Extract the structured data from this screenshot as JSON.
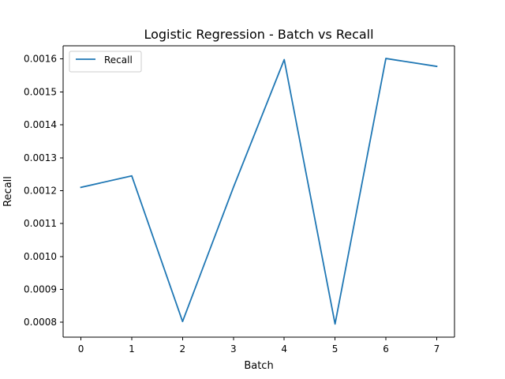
{
  "chart_data": {
    "type": "line",
    "title": "Logistic Regression - Batch vs Recall",
    "xlabel": "Batch",
    "ylabel": "Recall",
    "x": [
      0,
      1,
      2,
      3,
      4,
      5,
      6,
      7
    ],
    "series": [
      {
        "name": "Recall",
        "color": "#1f77b4",
        "values": [
          0.00121,
          0.001245,
          0.0008025,
          0.00121,
          0.001598,
          0.000795,
          0.0016015,
          0.0015775
        ]
      }
    ],
    "xlim": [
      -0.35,
      7.35
    ],
    "ylim": [
      0.000755,
      0.00164
    ],
    "xticks": [
      0,
      1,
      2,
      3,
      4,
      5,
      6,
      7
    ],
    "xtick_labels": [
      "0",
      "1",
      "2",
      "3",
      "4",
      "5",
      "6",
      "7"
    ],
    "yticks": [
      0.0008,
      0.0009,
      0.001,
      0.0011,
      0.0012,
      0.0013,
      0.0014,
      0.0015,
      0.0016
    ],
    "ytick_labels": [
      "0.0008",
      "0.0009",
      "0.0010",
      "0.0011",
      "0.0012",
      "0.0013",
      "0.0014",
      "0.0015",
      "0.0016"
    ],
    "grid": false,
    "legend": "top-left"
  }
}
